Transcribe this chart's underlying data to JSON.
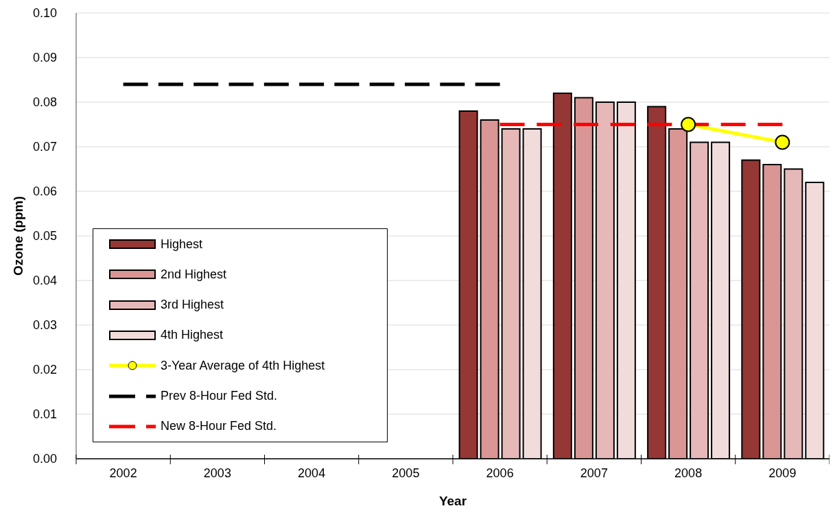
{
  "chart_data": {
    "type": "bar",
    "xlabel": "Year",
    "ylabel": "Ozone (ppm)",
    "categories": [
      "2002",
      "2003",
      "2004",
      "2005",
      "2006",
      "2007",
      "2008",
      "2009"
    ],
    "series": [
      {
        "name": "Highest",
        "color": "#953735",
        "values": [
          null,
          null,
          null,
          null,
          0.078,
          0.082,
          0.079,
          0.067
        ]
      },
      {
        "name": "2nd Highest",
        "color": "#d99694",
        "values": [
          null,
          null,
          null,
          null,
          0.076,
          0.081,
          0.074,
          0.066
        ]
      },
      {
        "name": "3rd Highest",
        "color": "#e6b9b8",
        "values": [
          null,
          null,
          null,
          null,
          0.074,
          0.08,
          0.071,
          0.065
        ]
      },
      {
        "name": "4th Highest",
        "color": "#f2dcdb",
        "values": [
          null,
          null,
          null,
          null,
          0.074,
          0.08,
          0.071,
          0.062
        ]
      },
      {
        "name": "3-Year Average of 4th Highest",
        "type": "line",
        "color": "#ffff00",
        "marker": "circle",
        "line_style": "solid",
        "values": [
          null,
          null,
          null,
          null,
          null,
          null,
          0.075,
          0.071
        ]
      },
      {
        "name": "Prev 8-Hour Fed Std.",
        "type": "line",
        "color": "#000000",
        "marker": "none",
        "line_style": "dashed",
        "values": [
          0.084,
          0.084,
          0.084,
          0.084,
          0.084,
          null,
          null,
          null
        ]
      },
      {
        "name": "New 8-Hour Fed Std.",
        "type": "line",
        "color": "#ff0000",
        "marker": "none",
        "line_style": "dashed",
        "values": [
          null,
          null,
          null,
          null,
          0.075,
          0.075,
          0.075,
          0.075
        ]
      }
    ],
    "ylim": [
      0,
      0.1
    ],
    "yticks": [
      {
        "value": 0,
        "label": "0.00"
      },
      0.01,
      0.02,
      0.03,
      0.04,
      0.05,
      0.06,
      0.07,
      0.08,
      0.09,
      {
        "value": 0.1,
        "label": "0.10"
      }
    ],
    "grid": "y",
    "legend": "bottom left"
  }
}
